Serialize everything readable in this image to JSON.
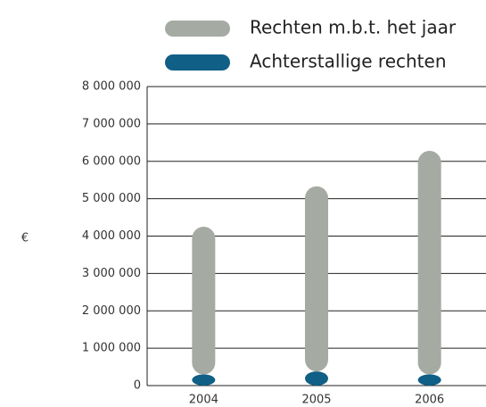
{
  "chart_data": {
    "type": "bar",
    "stacked": true,
    "ylabel": "€",
    "categories": [
      "2004",
      "2005",
      "2006"
    ],
    "series": [
      {
        "name": "Achterstallige rechten",
        "color": "#0f5f86",
        "values": [
          300000,
          380000,
          300000
        ]
      },
      {
        "name": "Rechten m.b.t. het jaar",
        "color": "#a5aba3",
        "values": [
          3950000,
          4950000,
          5980000
        ]
      }
    ],
    "legend_order": [
      "Rechten m.b.t. het jaar",
      "Achterstallige rechten"
    ],
    "ylim": [
      0,
      8000000
    ],
    "yticks": [
      0,
      {
        "value": 1000000,
        "label": "1 000 000"
      },
      {
        "value": 2000000,
        "label": "2 000 000"
      },
      {
        "value": 3000000,
        "label": "3 000 000"
      },
      {
        "value": 4000000,
        "label": "4 000 000"
      },
      {
        "value": 5000000,
        "label": "5 000 000"
      },
      {
        "value": 6000000,
        "label": "6 000 000"
      },
      {
        "value": 7000000,
        "label": "7 000 000"
      },
      {
        "value": 8000000,
        "label": "8 000 000"
      }
    ],
    "grid": true
  }
}
